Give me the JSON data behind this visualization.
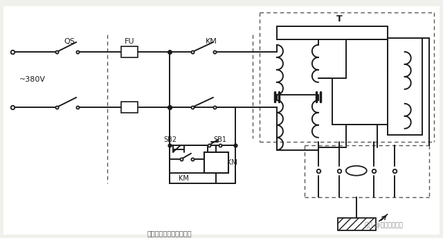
{
  "bg_color": "#f0f0ec",
  "line_color": "#1a1a1a",
  "dashed_color": "#555555",
  "title": "T",
  "label_qs": "QS",
  "label_fu": "FU",
  "label_km_top": "KM",
  "label_sb2": "SB2",
  "label_sb1": "SB1",
  "label_km_ctrl": "KM",
  "label_km_coil": "KM",
  "label_380": "~380V",
  "watermark": "头条 @技成电工课堂",
  "caption": "图：电动机降压启动电路"
}
